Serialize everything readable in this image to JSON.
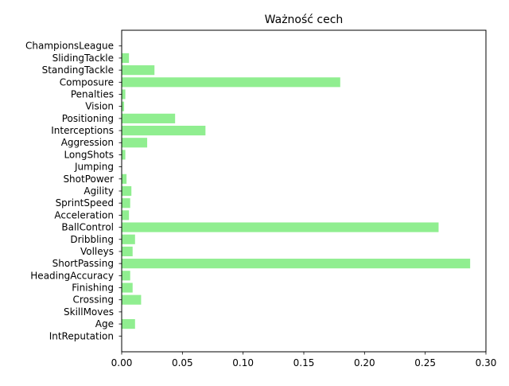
{
  "chart_data": {
    "type": "bar",
    "orientation": "horizontal",
    "title": "Ważność cech",
    "xlabel": "",
    "ylabel": "",
    "xlim": [
      0,
      0.3
    ],
    "x_ticks": [
      0.0,
      0.05,
      0.1,
      0.15,
      0.2,
      0.25,
      0.3
    ],
    "x_tick_labels": [
      "0.00",
      "0.05",
      "0.10",
      "0.15",
      "0.20",
      "0.25",
      "0.30"
    ],
    "grid": false,
    "legend": "none",
    "bar_color": "#90ee90",
    "categories": [
      "IntReputation",
      "Age",
      "SkillMoves",
      "Crossing",
      "Finishing",
      "HeadingAccuracy",
      "ShortPassing",
      "Volleys",
      "Dribbling",
      "BallControl",
      "Acceleration",
      "SprintSpeed",
      "Agility",
      "ShotPower",
      "Jumping",
      "LongShots",
      "Aggression",
      "Interceptions",
      "Positioning",
      "Vision",
      "Penalties",
      "Composure",
      "StandingTackle",
      "SlidingTackle",
      "ChampionsLeague"
    ],
    "values": [
      0.0,
      0.011,
      0.0,
      0.016,
      0.009,
      0.007,
      0.287,
      0.009,
      0.011,
      0.261,
      0.006,
      0.007,
      0.008,
      0.004,
      0.0,
      0.003,
      0.021,
      0.069,
      0.044,
      0.002,
      0.003,
      0.18,
      0.027,
      0.006,
      0.0
    ]
  }
}
